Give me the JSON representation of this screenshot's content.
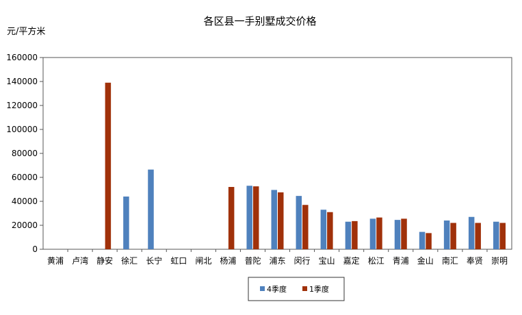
{
  "chart_data": {
    "type": "bar",
    "title": "各区县一手别墅成交价格",
    "ylabel": "元/平方米",
    "xlabel": "",
    "ylim": [
      0,
      160000
    ],
    "yticks": [
      0,
      20000,
      40000,
      60000,
      80000,
      100000,
      120000,
      140000,
      160000
    ],
    "grid": false,
    "legend_position": "bottom",
    "categories": [
      "黄浦",
      "卢湾",
      "静安",
      "徐汇",
      "长宁",
      "虹口",
      "闸北",
      "杨浦",
      "普陀",
      "浦东",
      "闵行",
      "宝山",
      "嘉定",
      "松江",
      "青浦",
      "金山",
      "南汇",
      "奉贤",
      "崇明"
    ],
    "series": [
      {
        "name": "4季度",
        "color": "#4f81bd",
        "values": [
          null,
          null,
          null,
          44000,
          66500,
          null,
          null,
          null,
          53000,
          49500,
          44500,
          33000,
          23000,
          25500,
          24500,
          14500,
          24000,
          27000,
          23000
        ]
      },
      {
        "name": "1季度",
        "color": "#a0310a",
        "values": [
          null,
          null,
          139000,
          null,
          null,
          null,
          null,
          52000,
          52500,
          47500,
          37000,
          31000,
          23500,
          26500,
          25500,
          13500,
          22000,
          22000,
          22000
        ]
      }
    ]
  }
}
